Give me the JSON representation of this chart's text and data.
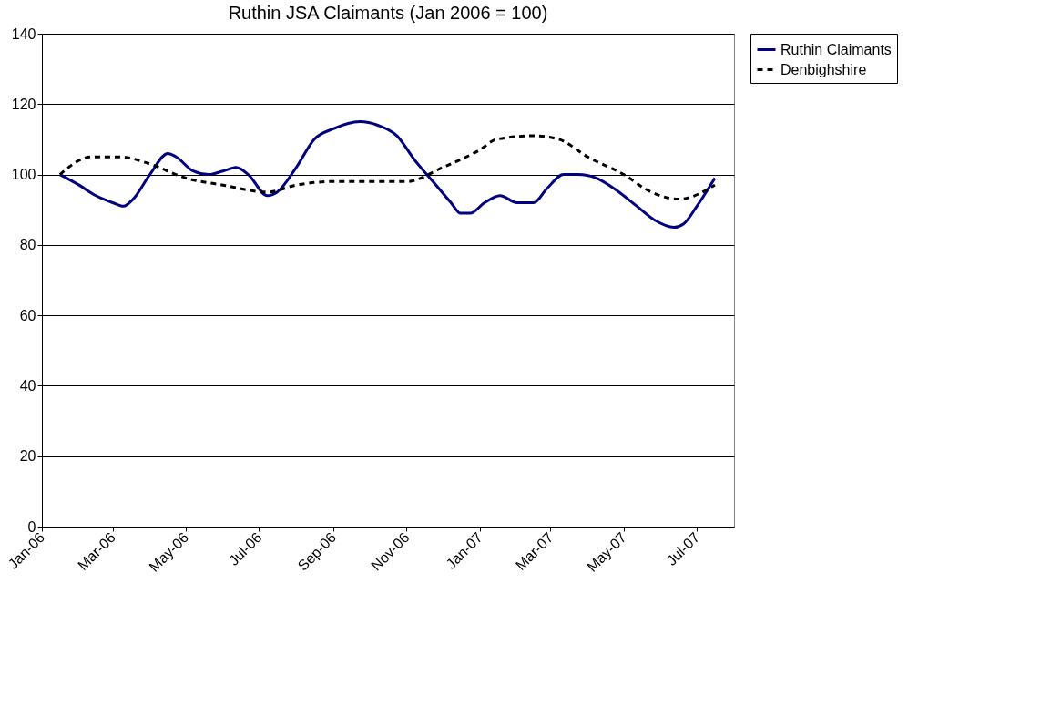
{
  "chart_data": {
    "type": "line",
    "title": "Ruthin JSA Claimants (Jan 2006 = 100)",
    "xlim": [
      "2006-01-01",
      "2007-08-01"
    ],
    "xticks": [
      {
        "value": "2006-01-01",
        "label": "Jan-06"
      },
      {
        "value": "2006-03-01",
        "label": "Mar-06"
      },
      {
        "value": "2006-05-01",
        "label": "May-06"
      },
      {
        "value": "2006-07-01",
        "label": "Jul-06"
      },
      {
        "value": "2006-09-01",
        "label": "Sep-06"
      },
      {
        "value": "2006-11-01",
        "label": "Nov-06"
      },
      {
        "value": "2007-01-01",
        "label": "Jan-07"
      },
      {
        "value": "2007-03-01",
        "label": "Mar-07"
      },
      {
        "value": "2007-05-01",
        "label": "May-07"
      },
      {
        "value": "2007-07-01",
        "label": "Jul-07"
      }
    ],
    "ylim": [
      0,
      140
    ],
    "yticks": [
      0,
      20,
      40,
      60,
      80,
      100,
      120,
      140
    ],
    "grid": "y",
    "legend": "right",
    "series": [
      {
        "name": "Ruthin Claimants",
        "color": "#000080",
        "line_style": "solid",
        "x": [
          "2006-01-16",
          "2006-02-01",
          "2006-02-15",
          "2006-03-01",
          "2006-03-10",
          "2006-03-18",
          "2006-04-01",
          "2006-04-16",
          "2006-04-23",
          "2006-05-07",
          "2006-05-20",
          "2006-06-01",
          "2006-06-12",
          "2006-06-22",
          "2006-07-08",
          "2006-07-16",
          "2006-08-01",
          "2006-08-16",
          "2006-09-01",
          "2006-09-23",
          "2006-10-08",
          "2006-10-24",
          "2006-11-08",
          "2006-11-23",
          "2006-12-08",
          "2006-12-16",
          "2006-12-24",
          "2007-01-05",
          "2007-01-18",
          "2007-02-01",
          "2007-02-15",
          "2007-02-26",
          "2007-03-12",
          "2007-03-24",
          "2007-04-08",
          "2007-04-23",
          "2007-05-12",
          "2007-05-27",
          "2007-06-12",
          "2007-06-20",
          "2007-07-01",
          "2007-07-16"
        ],
        "values": [
          100,
          97,
          94,
          92,
          91,
          93,
          100,
          106,
          105,
          101,
          100,
          101,
          102,
          100,
          94,
          95,
          102,
          110,
          113,
          115,
          114,
          111,
          104,
          98,
          92,
          89,
          89,
          92,
          94,
          92,
          92,
          96,
          100,
          100,
          99,
          96,
          91,
          87,
          85,
          86,
          91,
          99
        ]
      },
      {
        "name": "Denbighshire",
        "color": "#000000",
        "line_style": "dashed",
        "x": [
          "2006-01-16",
          "2006-02-11",
          "2006-03-08",
          "2006-04-01",
          "2006-05-01",
          "2006-06-01",
          "2006-07-08",
          "2006-08-01",
          "2006-09-01",
          "2006-11-01",
          "2006-12-01",
          "2007-01-01",
          "2007-01-15",
          "2007-02-15",
          "2007-03-08",
          "2007-04-01",
          "2007-05-01",
          "2007-05-24",
          "2007-06-16",
          "2007-07-16"
        ],
        "values": [
          100,
          105,
          105,
          103,
          99,
          97,
          95,
          97,
          98,
          98,
          102,
          107,
          110,
          111,
          110,
          105,
          100,
          95,
          93,
          97
        ]
      }
    ]
  }
}
